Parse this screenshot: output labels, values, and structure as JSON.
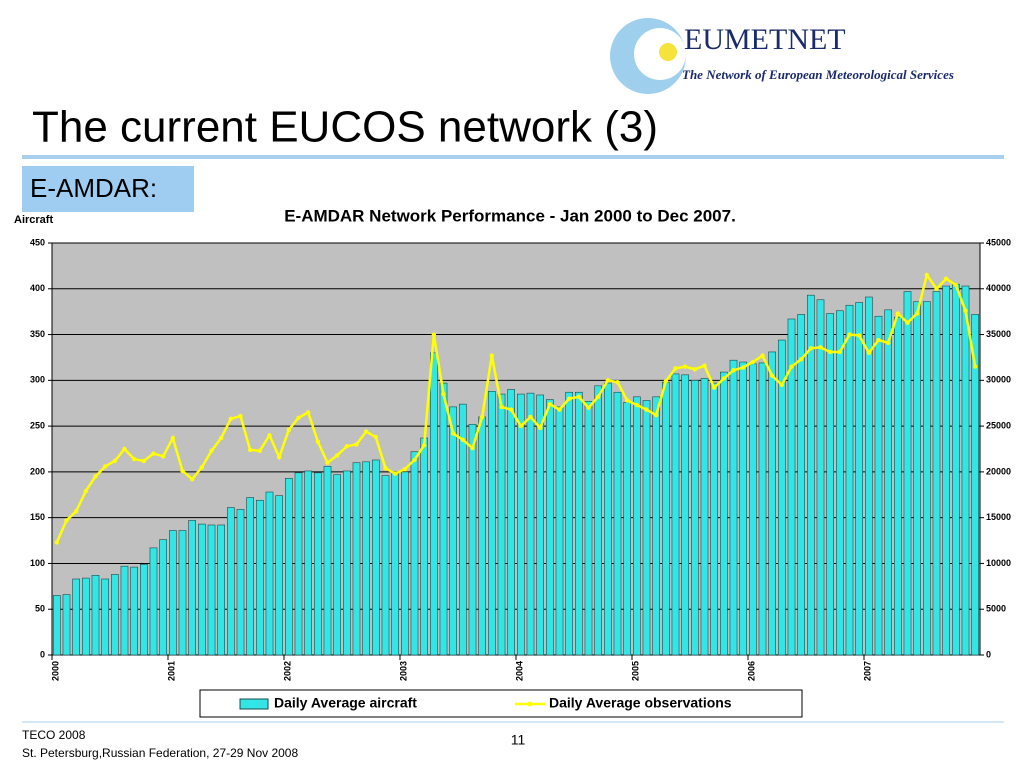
{
  "header": {
    "logo": "EUMETNET",
    "logo_subtitle": "The Network of European Meteorological Services",
    "title": "The current EUCOS network (3)",
    "section": "E-AMDAR:"
  },
  "footer": {
    "line1": "TECO 2008",
    "line2": "St. Petersburg,Russian Federation, 27-29 Nov 2008",
    "page": "11"
  },
  "chart_data": {
    "type": "bar",
    "title": "E-AMDAR Network Performance - Jan 2000 to Dec 2007.",
    "ylabel": "Aircraft",
    "categories": [
      "2000",
      null,
      null,
      null,
      null,
      null,
      null,
      null,
      null,
      null,
      null,
      null,
      "2001",
      null,
      null,
      null,
      null,
      null,
      null,
      null,
      null,
      null,
      null,
      null,
      "2002",
      null,
      null,
      null,
      null,
      null,
      null,
      null,
      null,
      null,
      null,
      null,
      "2003",
      null,
      null,
      null,
      null,
      null,
      null,
      null,
      null,
      null,
      null,
      null,
      "2004",
      null,
      null,
      null,
      null,
      null,
      null,
      null,
      null,
      null,
      null,
      null,
      "2005",
      null,
      null,
      null,
      null,
      null,
      null,
      null,
      null,
      null,
      null,
      null,
      "2006",
      null,
      null,
      null,
      null,
      null,
      null,
      null,
      null,
      null,
      null,
      null,
      "2007",
      null,
      null,
      null,
      null,
      null,
      null,
      null,
      null,
      null,
      null,
      null
    ],
    "series": [
      {
        "name": "Daily Average aircraft",
        "type": "bar",
        "color": "#33e6e6",
        "values": [
          65,
          66,
          83,
          84,
          87,
          83,
          88,
          97,
          96,
          99,
          117,
          126,
          136,
          136,
          147,
          143,
          142,
          142,
          161,
          159,
          172,
          169,
          178,
          174,
          193,
          199,
          201,
          199,
          206,
          197,
          201,
          210,
          211,
          213,
          196,
          199,
          200,
          222,
          237,
          330,
          297,
          271,
          274,
          252,
          260,
          288,
          285,
          290,
          285,
          286,
          284,
          279,
          271,
          287,
          287,
          277,
          294,
          297,
          287,
          276,
          282,
          278,
          282,
          298,
          307,
          306,
          300,
          302,
          297,
          309,
          322,
          320,
          318,
          319,
          331,
          344,
          367,
          372,
          393,
          388,
          373,
          376,
          382,
          385,
          391,
          370,
          377,
          369,
          397,
          386,
          386,
          397,
          403,
          405,
          403,
          372
        ]
      },
      {
        "name": "Daily Average observations",
        "type": "line",
        "axis": "y2",
        "color": "#ffff00",
        "values": [
          12300,
          14700,
          15700,
          17900,
          19500,
          20600,
          21200,
          22500,
          21400,
          21200,
          22000,
          21700,
          23700,
          20100,
          19200,
          20500,
          22300,
          23700,
          25800,
          26100,
          22400,
          22300,
          24000,
          21600,
          24600,
          25900,
          26500,
          23300,
          21000,
          21800,
          22800,
          23000,
          24400,
          23800,
          20400,
          19800,
          20300,
          21300,
          22900,
          35000,
          28500,
          24200,
          23500,
          22600,
          26000,
          32700,
          27100,
          26800,
          25000,
          26000,
          24800,
          27400,
          26800,
          28000,
          28200,
          27000,
          28200,
          30000,
          29800,
          27800,
          27300,
          26800,
          26200,
          29900,
          31300,
          31500,
          31200,
          31600,
          29200,
          30200,
          31100,
          31400,
          32000,
          32700,
          30500,
          29500,
          31500,
          32300,
          33500,
          33600,
          33100,
          33100,
          35000,
          34900,
          33000,
          34400,
          34100,
          37300,
          36300,
          37300,
          41500,
          40000,
          41100,
          40400,
          37600,
          31500
        ]
      }
    ],
    "ylim": [
      0,
      450
    ],
    "yticks": [
      0,
      50,
      100,
      150,
      200,
      250,
      300,
      350,
      400,
      450
    ],
    "y2lim": [
      0,
      45000
    ],
    "y2ticks": [
      0,
      5000,
      10000,
      15000,
      20000,
      25000,
      30000,
      35000,
      40000,
      45000
    ],
    "grid": true,
    "plot_background": "#c0c0c0",
    "legend": "bottom"
  }
}
